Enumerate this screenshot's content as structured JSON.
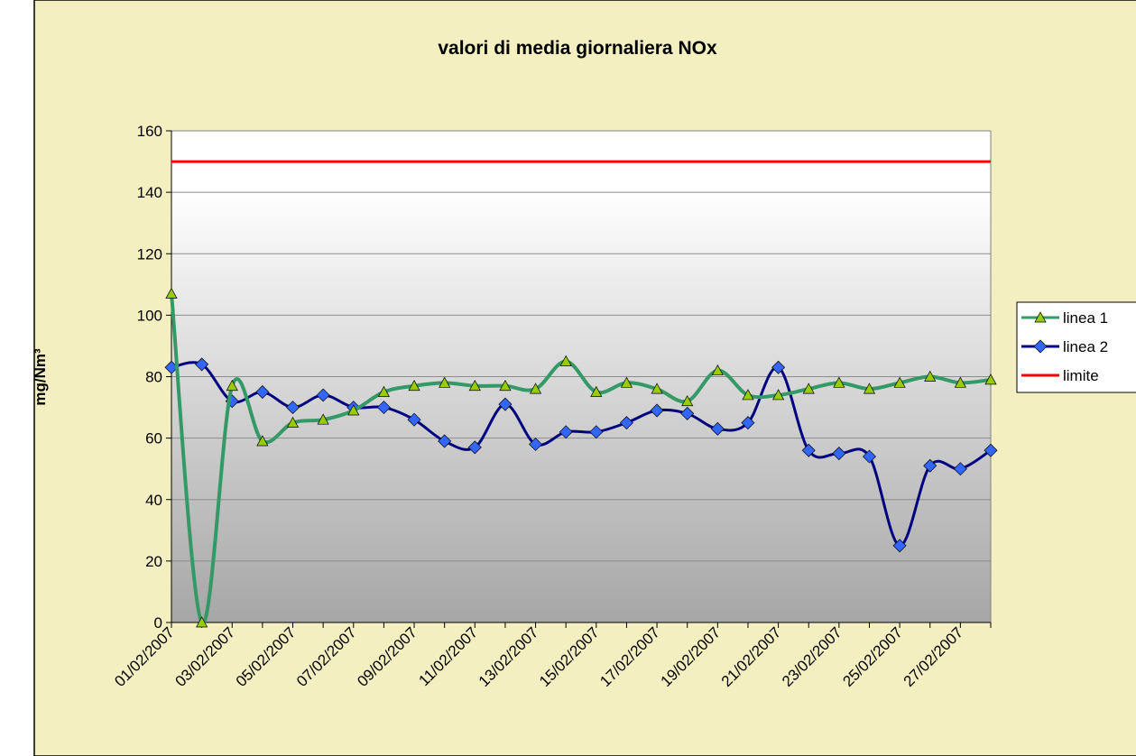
{
  "chart_data": {
    "type": "line",
    "title": "valori di media giornaliera  NOx",
    "y_label": "mg/Nm³",
    "categories": [
      "01/02/2007",
      null,
      "03/02/2007",
      null,
      "05/02/2007",
      null,
      "07/02/2007",
      null,
      "09/02/2007",
      null,
      "11/02/2007",
      null,
      "13/02/2007",
      null,
      "15/02/2007",
      null,
      "17/02/2007",
      null,
      "19/02/2007",
      null,
      "21/02/2007",
      null,
      "23/02/2007",
      null,
      "25/02/2007",
      null,
      "27/02/2007",
      null
    ],
    "series": [
      {
        "name": "linea 1",
        "color": "#339966",
        "marker": "triangle",
        "marker_color": "#99cc00",
        "smooth": true,
        "values": [
          107,
          0,
          77,
          59,
          65,
          66,
          69,
          75,
          77,
          78,
          77,
          77,
          76,
          85,
          75,
          78,
          76,
          72,
          82,
          74,
          74,
          76,
          78,
          76,
          78,
          80,
          78,
          79
        ]
      },
      {
        "name": "linea 2",
        "color": "#000080",
        "marker": "diamond",
        "marker_color": "#3366ff",
        "smooth": true,
        "values": [
          83,
          84,
          72,
          75,
          70,
          74,
          70,
          70,
          66,
          59,
          57,
          71,
          58,
          62,
          62,
          65,
          69,
          68,
          63,
          65,
          83,
          56,
          55,
          54,
          25,
          51,
          50,
          56
        ]
      },
      {
        "name": "limite",
        "color": "#ff0000",
        "marker": null,
        "smooth": false,
        "values": [
          150,
          150,
          150,
          150,
          150,
          150,
          150,
          150,
          150,
          150,
          150,
          150,
          150,
          150,
          150,
          150,
          150,
          150,
          150,
          150,
          150,
          150,
          150,
          150,
          150,
          150,
          150,
          150
        ]
      }
    ],
    "ylim": [
      0,
      160
    ],
    "yticks": [
      0,
      20,
      40,
      60,
      80,
      100,
      120,
      140,
      160
    ],
    "grid": true,
    "legend": "right"
  }
}
